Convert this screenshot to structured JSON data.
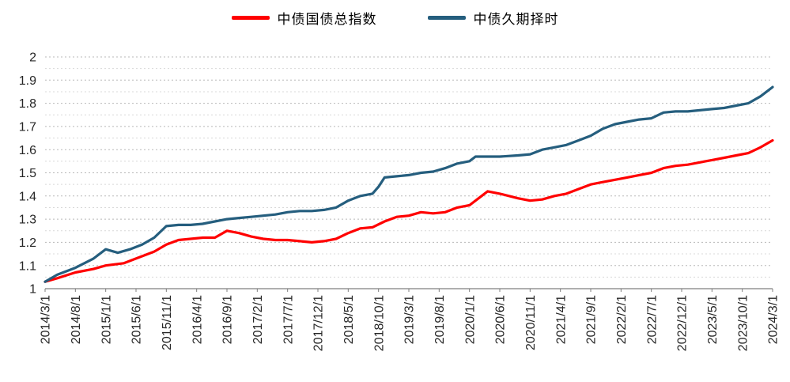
{
  "chart_data": {
    "type": "line",
    "title": "",
    "legend_position": "top",
    "x_axis": {
      "tick_interval_months": 5,
      "max_month": 120,
      "tick_labels": [
        "2014/3/1",
        "2014/8/1",
        "2015/1/1",
        "2015/6/1",
        "2015/11/1",
        "2016/4/1",
        "2016/9/1",
        "2017/2/1",
        "2017/7/1",
        "2017/12/1",
        "2018/5/1",
        "2018/10/1",
        "2019/3/1",
        "2019/8/1",
        "2020/1/1",
        "2020/6/1",
        "2020/11/1",
        "2021/4/1",
        "2021/9/1",
        "2022/2/1",
        "2022/7/1",
        "2022/12/1",
        "2023/5/1",
        "2023/10/1",
        "2024/3/1"
      ]
    },
    "y_axis": {
      "min": 1,
      "max": 2,
      "tick_step": 0.1,
      "tick_labels": [
        "1",
        "1.1",
        "1.2",
        "1.3",
        "1.4",
        "1.5",
        "1.6",
        "1.7",
        "1.8",
        "1.9",
        "2"
      ]
    },
    "grid": {
      "major": true,
      "minor": true,
      "style": "dashed"
    },
    "colors": {
      "gridline_major": "#b8b8b8",
      "gridline_minor": "#d8d8d8",
      "axis_line": "#7f7f7f",
      "axis_text": "#262626"
    },
    "series": [
      {
        "name": "中债国债总指数",
        "color": "#ff0000",
        "points": [
          [
            0,
            1.03
          ],
          [
            2,
            1.045
          ],
          [
            5,
            1.07
          ],
          [
            8,
            1.085
          ],
          [
            10,
            1.1
          ],
          [
            13,
            1.11
          ],
          [
            15,
            1.13
          ],
          [
            18,
            1.16
          ],
          [
            20,
            1.19
          ],
          [
            22,
            1.21
          ],
          [
            24,
            1.215
          ],
          [
            26,
            1.22
          ],
          [
            28,
            1.22
          ],
          [
            30,
            1.25
          ],
          [
            32,
            1.24
          ],
          [
            34,
            1.225
          ],
          [
            36,
            1.215
          ],
          [
            38,
            1.21
          ],
          [
            40,
            1.21
          ],
          [
            42,
            1.205
          ],
          [
            44,
            1.2
          ],
          [
            46,
            1.205
          ],
          [
            48,
            1.215
          ],
          [
            50,
            1.24
          ],
          [
            52,
            1.26
          ],
          [
            54,
            1.265
          ],
          [
            56,
            1.29
          ],
          [
            58,
            1.31
          ],
          [
            60,
            1.315
          ],
          [
            62,
            1.33
          ],
          [
            64,
            1.325
          ],
          [
            66,
            1.33
          ],
          [
            68,
            1.35
          ],
          [
            70,
            1.36
          ],
          [
            72,
            1.4
          ],
          [
            73,
            1.42
          ],
          [
            75,
            1.41
          ],
          [
            78,
            1.39
          ],
          [
            80,
            1.38
          ],
          [
            82,
            1.385
          ],
          [
            84,
            1.4
          ],
          [
            86,
            1.41
          ],
          [
            88,
            1.43
          ],
          [
            90,
            1.45
          ],
          [
            92,
            1.46
          ],
          [
            94,
            1.47
          ],
          [
            96,
            1.48
          ],
          [
            98,
            1.49
          ],
          [
            100,
            1.5
          ],
          [
            102,
            1.52
          ],
          [
            104,
            1.53
          ],
          [
            106,
            1.535
          ],
          [
            108,
            1.545
          ],
          [
            110,
            1.555
          ],
          [
            112,
            1.565
          ],
          [
            114,
            1.575
          ],
          [
            116,
            1.585
          ],
          [
            118,
            1.61
          ],
          [
            120,
            1.64
          ]
        ]
      },
      {
        "name": "中债久期择时",
        "color": "#255e7e",
        "points": [
          [
            0,
            1.03
          ],
          [
            2,
            1.06
          ],
          [
            5,
            1.09
          ],
          [
            8,
            1.13
          ],
          [
            10,
            1.17
          ],
          [
            12,
            1.155
          ],
          [
            14,
            1.17
          ],
          [
            16,
            1.19
          ],
          [
            18,
            1.22
          ],
          [
            20,
            1.27
          ],
          [
            22,
            1.275
          ],
          [
            24,
            1.275
          ],
          [
            26,
            1.28
          ],
          [
            28,
            1.29
          ],
          [
            30,
            1.3
          ],
          [
            32,
            1.305
          ],
          [
            34,
            1.31
          ],
          [
            36,
            1.315
          ],
          [
            38,
            1.32
          ],
          [
            40,
            1.33
          ],
          [
            42,
            1.335
          ],
          [
            44,
            1.335
          ],
          [
            46,
            1.34
          ],
          [
            48,
            1.35
          ],
          [
            50,
            1.38
          ],
          [
            52,
            1.4
          ],
          [
            54,
            1.41
          ],
          [
            55,
            1.44
          ],
          [
            56,
            1.48
          ],
          [
            58,
            1.485
          ],
          [
            60,
            1.49
          ],
          [
            62,
            1.5
          ],
          [
            64,
            1.505
          ],
          [
            66,
            1.52
          ],
          [
            68,
            1.54
          ],
          [
            70,
            1.55
          ],
          [
            71,
            1.57
          ],
          [
            72,
            1.57
          ],
          [
            75,
            1.57
          ],
          [
            78,
            1.575
          ],
          [
            80,
            1.58
          ],
          [
            82,
            1.6
          ],
          [
            84,
            1.61
          ],
          [
            86,
            1.62
          ],
          [
            88,
            1.64
          ],
          [
            90,
            1.66
          ],
          [
            92,
            1.69
          ],
          [
            94,
            1.71
          ],
          [
            96,
            1.72
          ],
          [
            98,
            1.73
          ],
          [
            100,
            1.735
          ],
          [
            102,
            1.76
          ],
          [
            104,
            1.765
          ],
          [
            106,
            1.765
          ],
          [
            108,
            1.77
          ],
          [
            110,
            1.775
          ],
          [
            112,
            1.78
          ],
          [
            114,
            1.79
          ],
          [
            116,
            1.8
          ],
          [
            118,
            1.83
          ],
          [
            120,
            1.87
          ]
        ]
      }
    ]
  }
}
